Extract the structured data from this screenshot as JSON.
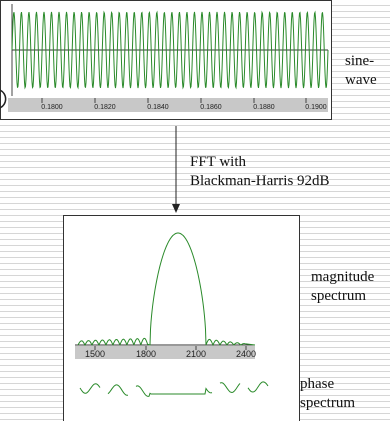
{
  "sine_panel": {
    "label_line1": "sine-",
    "label_line2": "wave",
    "x_ticks": [
      "0.1800",
      "0.1820",
      "0.1840",
      "0.1860",
      "0.1880",
      "0.1900"
    ]
  },
  "arrow_label": {
    "line1": "FFT with",
    "line2": "Blackman-Harris 92dB"
  },
  "spectrum_panel": {
    "magnitude_label_line1": "magnitude",
    "magnitude_label_line2": "spectrum",
    "phase_label_line1": "phase",
    "phase_label_line2": "spectrum",
    "x_ticks": [
      "1500",
      "1800",
      "2100",
      "2400"
    ]
  },
  "colors": {
    "trace": "#2a8a2a",
    "axis_bar": "#c8c8c8",
    "frame": "#333333"
  }
}
